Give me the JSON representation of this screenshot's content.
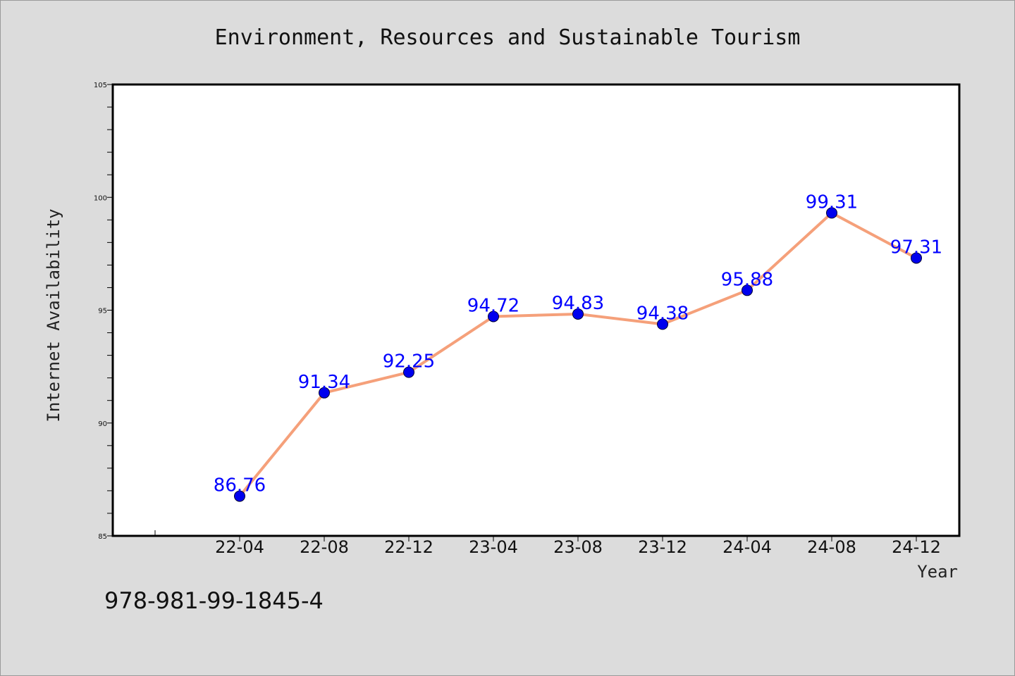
{
  "chart_data": {
    "type": "line",
    "title": "Environment, Resources and Sustainable Tourism",
    "xlabel": "Year",
    "ylabel": "Internet Availability",
    "categories": [
      "22-04",
      "22-08",
      "22-12",
      "23-04",
      "23-08",
      "23-12",
      "24-04",
      "24-08",
      "24-12"
    ],
    "values": [
      86.76,
      91.34,
      92.25,
      94.72,
      94.83,
      94.38,
      95.88,
      99.31,
      97.31
    ],
    "data_labels": [
      "86.76",
      "91.34",
      "92.25",
      "94.72",
      "94.83",
      "94.38",
      "95.88",
      "99.31",
      "97.31"
    ],
    "ylim": [
      85,
      105
    ],
    "yticks": [
      85,
      90,
      95,
      100,
      105
    ],
    "grid": false,
    "line_color": "#f5a07a",
    "marker_color": "#0000ee",
    "label_color": "#0000ff"
  },
  "footer": {
    "isbn": "978-981-99-1845-4"
  }
}
